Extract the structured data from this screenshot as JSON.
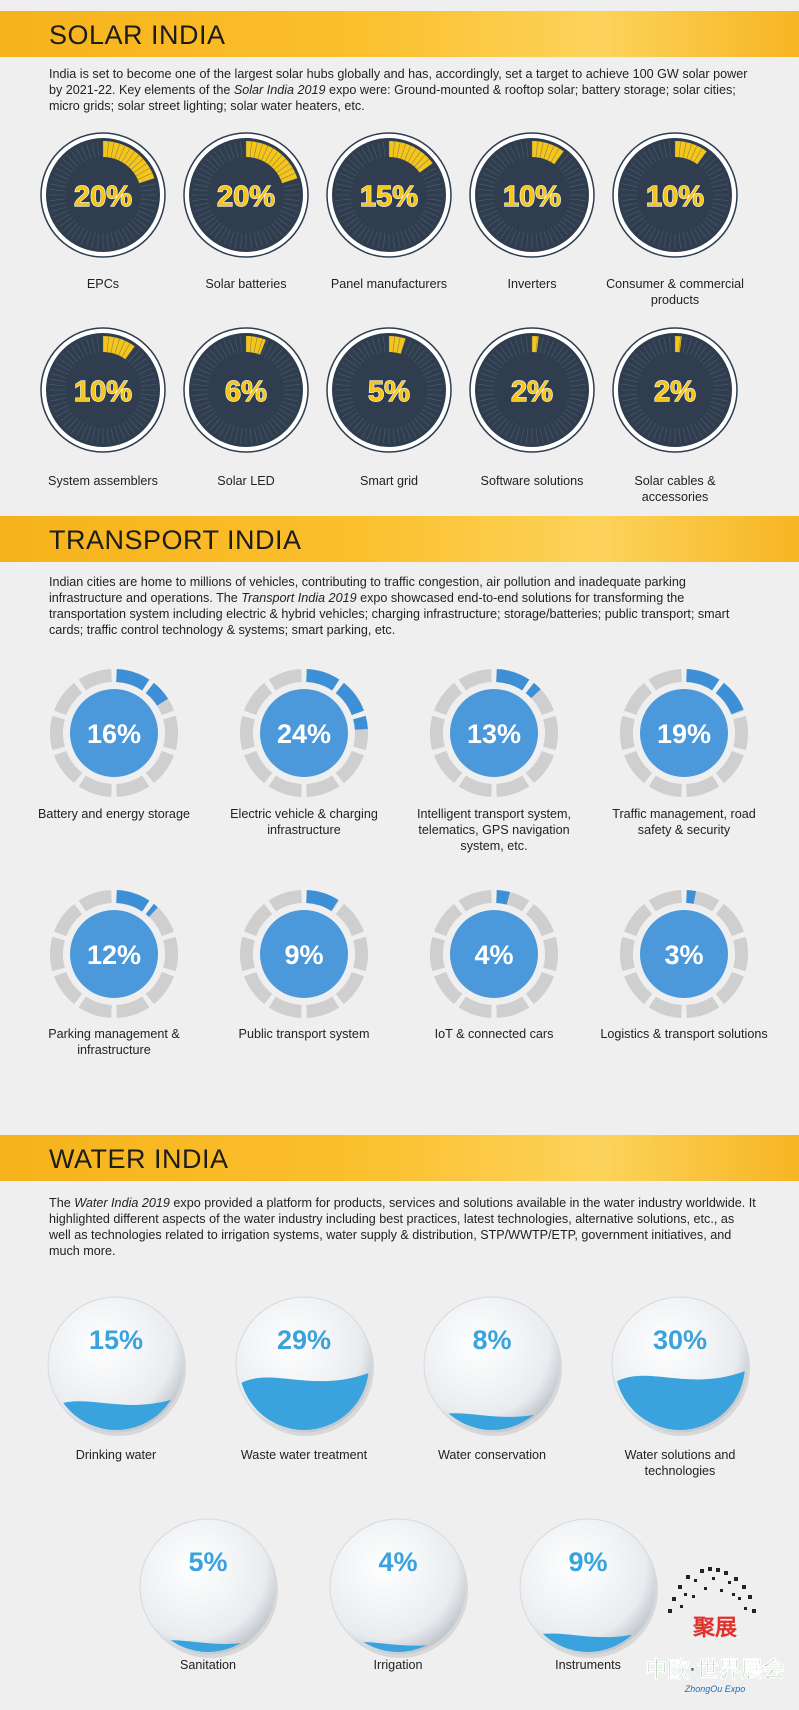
{
  "solar": {
    "title": "SOLAR INDIA",
    "intro_before": "India is set to become one of the largest solar hubs globally and has, accordingly, set a target to achieve 100 GW solar power by 2021-22. Key elements of the ",
    "intro_italic": "Solar India 2019",
    "intro_after": " expo were: Ground-mounted & rooftop solar; battery storage; solar cities; micro grids; solar street lighting; solar water heaters, etc."
  },
  "transport": {
    "title": "TRANSPORT INDIA",
    "intro_before": "Indian cities are home to millions of vehicles, contributing to traffic congestion, air pollution and inadequate parking infrastructure and operations. The ",
    "intro_italic": "Transport India 2019",
    "intro_after": " expo showcased end-to-end solutions for transforming the transportation system including electric & hybrid vehicles; charging infrastructure; storage/batteries; public transport; smart cards; traffic control technology & systems; smart parking, etc."
  },
  "water": {
    "title": "WATER INDIA",
    "intro_before": "The ",
    "intro_italic": "Water India 2019",
    "intro_after": " expo provided a platform for products, services and solutions available in the water industry worldwide. It highlighted different aspects of the water industry including best practices, latest technologies, alternative solutions, etc., as well as technologies related to irrigation systems, water supply & distribution, STP/WWTP/ETP, government initiatives, and much more."
  },
  "logo": {
    "top_text": "聚展",
    "bottom_text": "中欧·世界展会",
    "sub_text": "ZhongOu Expo"
  },
  "colors": {
    "banner": "#fbc02d",
    "solar_accent": "#f5c518",
    "solar_dark": "#2f3d4f",
    "transport_blue": "#3d8fd6",
    "transport_gray": "#cfcfcf",
    "water_blue": "#3aa3dd"
  },
  "chart_data": [
    {
      "type": "pie",
      "categories": [
        "EPCs",
        "Solar batteries",
        "Panel manufacturers",
        "Inverters",
        "Consumer & commercial products",
        "System assemblers",
        "Solar LED",
        "Smart grid",
        "Software solutions",
        "Solar cables & accessories"
      ],
      "values": [
        20,
        20,
        15,
        10,
        10,
        10,
        6,
        5,
        2,
        2
      ],
      "value_labels": [
        "20%",
        "20%",
        "15%",
        "10%",
        "10%",
        "10%",
        "6%",
        "5%",
        "2%",
        "2%"
      ]
    },
    {
      "type": "pie",
      "categories": [
        "Battery and energy storage",
        "Electric vehicle & charging infrastructure",
        "Intelligent transport system, telematics, GPS navigation system, etc.",
        "Traffic management, road safety & security",
        "Parking management & infrastructure",
        "Public transport system",
        "IoT & connected cars",
        "Logistics & transport solutions"
      ],
      "values": [
        16,
        24,
        13,
        19,
        12,
        9,
        4,
        3
      ],
      "value_labels": [
        "16%",
        "24%",
        "13%",
        "19%",
        "12%",
        "9%",
        "4%",
        "3%"
      ]
    },
    {
      "type": "bar",
      "categories": [
        "Drinking water",
        "Waste water treatment",
        "Water conservation",
        "Water solutions and technologies",
        "Sanitation",
        "Irrigation",
        "Instruments"
      ],
      "values": [
        15,
        29,
        8,
        30,
        5,
        4,
        9
      ],
      "value_labels": [
        "15%",
        "29%",
        "8%",
        "30%",
        "5%",
        "4%",
        "9%"
      ]
    }
  ]
}
